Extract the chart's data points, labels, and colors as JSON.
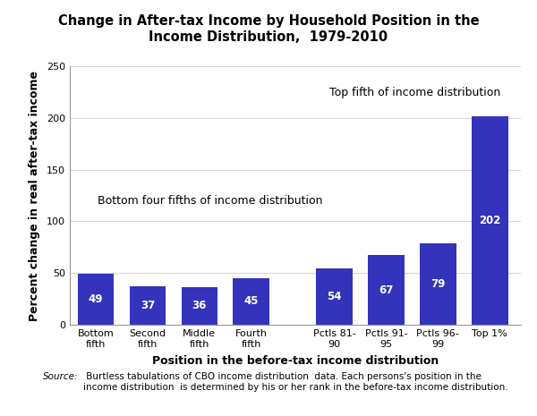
{
  "title": "Change in After-tax Income by Household Position in the\nIncome Distribution,  1979-2010",
  "categories": [
    "Bottom\nfifth",
    "Second\nfifth",
    "Middle\nfifth",
    "Fourth\nfifth",
    "Pctls 81-\n90",
    "Pctls 91-\n95",
    "Pctls 96-\n99",
    "Top 1%"
  ],
  "values": [
    49,
    37,
    36,
    45,
    54,
    67,
    79,
    202
  ],
  "bar_color": "#3333bb",
  "xlabel": "Position in the before-tax income distribution",
  "ylabel": "Percent change in real after-tax income",
  "ylim": [
    0,
    250
  ],
  "yticks": [
    0,
    50,
    100,
    150,
    200,
    250
  ],
  "annotation_bottom": "Bottom four fifths of income distribution",
  "annotation_top": "Top fifth of income distribution",
  "source_italic": "Source:",
  "source_text": " Burtless tabulations of CBO income distribution  data. Each persons's position in the\nincome distribution  is determined by his or her rank in the before-tax income distribution.",
  "title_fontsize": 10.5,
  "label_fontsize": 9,
  "tick_fontsize": 8,
  "value_fontsize": 8.5,
  "source_fontsize": 7.5,
  "annot_fontsize": 9
}
